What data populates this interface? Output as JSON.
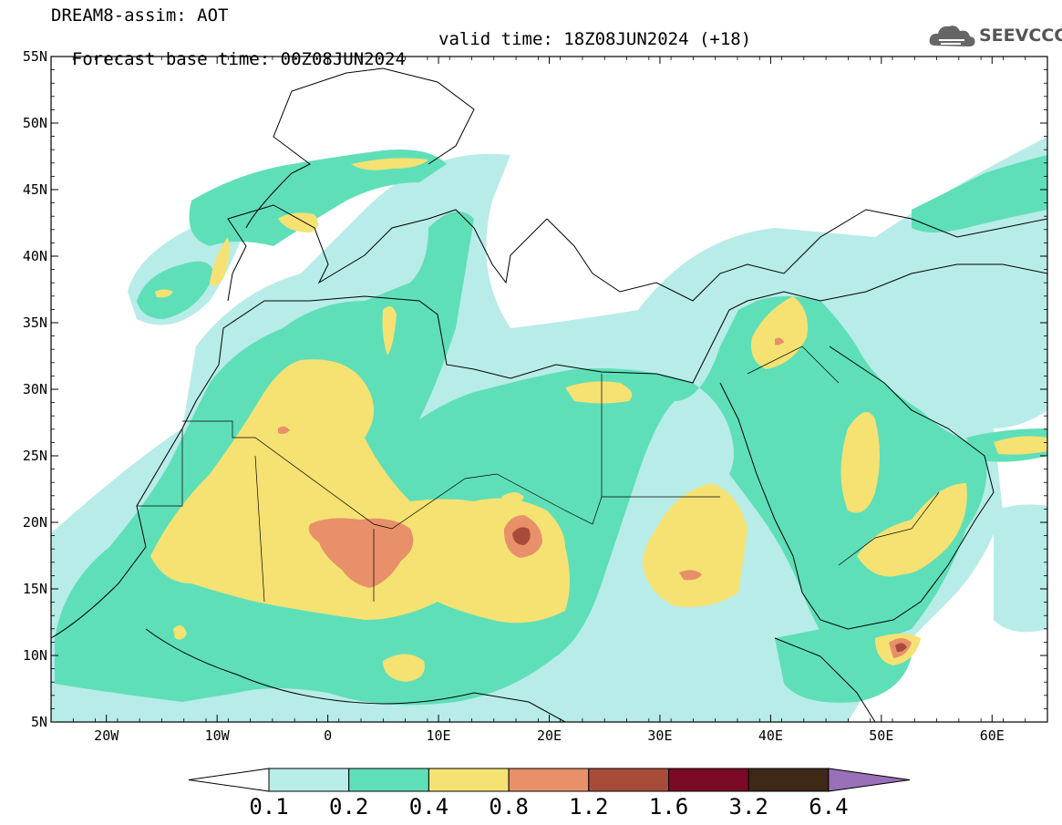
{
  "title": {
    "line1": "DREAM8-assim: AOT",
    "base_time": "Forecast base time: 00Z08JUN2024",
    "valid_time": "valid time: 18Z08JUN2024 (+18)"
  },
  "logo": {
    "text": "SEEVCCC",
    "icon": "cloud-logo-icon"
  },
  "map": {
    "lon_range": [
      -25,
      65
    ],
    "lat_range": [
      5,
      55
    ],
    "lat_ticks": [
      "55N",
      "50N",
      "45N",
      "40N",
      "35N",
      "30N",
      "25N",
      "20N",
      "15N",
      "10N",
      "5N"
    ],
    "lon_ticks": [
      "20W",
      "10W",
      "0",
      "10E",
      "20E",
      "30E",
      "40E",
      "50E",
      "60E"
    ]
  },
  "colorbar": {
    "levels": [
      "0.1",
      "0.2",
      "0.4",
      "0.8",
      "1.2",
      "1.6",
      "3.2",
      "6.4"
    ],
    "colors": [
      "#b8ece8",
      "#5fdfb8",
      "#f5e273",
      "#e8906a",
      "#a84c3a",
      "#7a0a26",
      "#3e2818",
      "#9a70b8"
    ],
    "under_color": "#ffffff"
  },
  "colors": {
    "c1": "#b8ece8",
    "c2": "#5fdfb8",
    "c3": "#f5e273",
    "c4": "#e8906a",
    "c5": "#a84c3a"
  }
}
